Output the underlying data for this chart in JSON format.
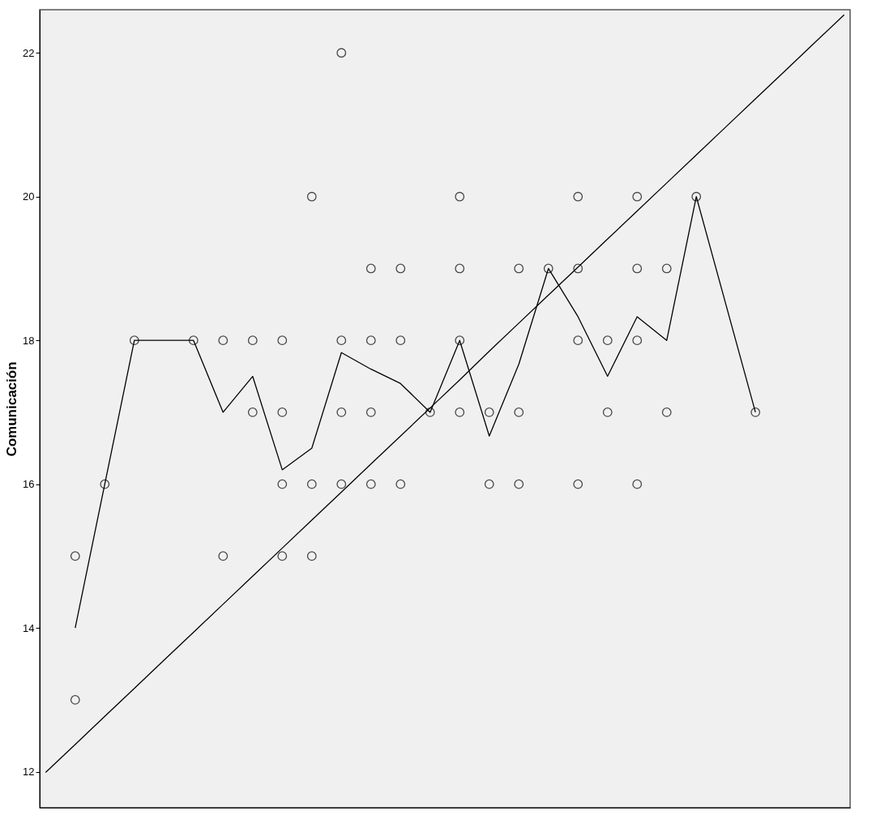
{
  "chart_data": {
    "type": "scatter",
    "ylabel": "Comunicación",
    "categories": [
      null,
      null,
      null,
      null,
      null,
      null,
      null,
      null,
      null,
      null,
      null,
      null,
      null,
      null,
      null,
      null,
      null,
      null,
      null,
      null,
      null,
      null,
      null,
      null,
      null,
      null,
      null,
      null
    ],
    "ylim": [
      11.5,
      22.6
    ],
    "yticks": [
      12,
      14,
      16,
      18,
      20,
      22
    ],
    "tick_labels": "y",
    "grid": false,
    "series": [
      {
        "marker": "circle",
        "color": "#000000",
        "values": [
          null,
          15,
          16,
          18,
          null,
          18,
          18,
          18,
          18,
          20,
          22,
          19,
          19,
          17,
          20,
          17,
          19,
          19,
          20,
          18,
          20,
          19,
          20,
          null,
          17,
          null,
          null,
          null
        ]
      },
      {
        "marker": "circle",
        "color": "#000000",
        "values": [
          null,
          13,
          null,
          null,
          null,
          null,
          15,
          17,
          17,
          16,
          18,
          18,
          18,
          null,
          19,
          16,
          17,
          null,
          19,
          17,
          19,
          17,
          null,
          null,
          null,
          null,
          null,
          null
        ]
      },
      {
        "marker": "circle",
        "color": "#000000",
        "values": [
          null,
          null,
          null,
          null,
          null,
          null,
          null,
          null,
          16,
          15,
          17,
          17,
          16,
          null,
          18,
          null,
          16,
          null,
          18,
          null,
          18,
          null,
          null,
          null,
          null,
          null,
          null,
          null
        ]
      },
      {
        "marker": "circle",
        "color": "#000000",
        "values": [
          null,
          null,
          null,
          null,
          null,
          null,
          null,
          null,
          15,
          null,
          16,
          16,
          null,
          null,
          17,
          null,
          null,
          null,
          16,
          null,
          16,
          null,
          null,
          null,
          null,
          null,
          null,
          null
        ]
      },
      {
        "type": "line",
        "marker": "none",
        "color": "#000000",
        "values": [
          null,
          14,
          16,
          18,
          null,
          18,
          17,
          17.5,
          16.2,
          16.5,
          17.83,
          17.6,
          17.4,
          17,
          18,
          16.67,
          17.67,
          19,
          18.33,
          17.5,
          18.33,
          18,
          20,
          null,
          17,
          null,
          null,
          null
        ]
      },
      {
        "type": "line",
        "marker": "none",
        "color": "#000000",
        "values": [
          11.99,
          12.38,
          12.77,
          13.16,
          13.55,
          13.94,
          14.33,
          14.72,
          15.11,
          15.5,
          15.89,
          16.28,
          16.67,
          17.06,
          17.45,
          17.85,
          18.24,
          18.63,
          19.02,
          19.41,
          19.8,
          20.19,
          20.58,
          20.97,
          21.36,
          21.75,
          22.14,
          22.53
        ]
      }
    ]
  }
}
